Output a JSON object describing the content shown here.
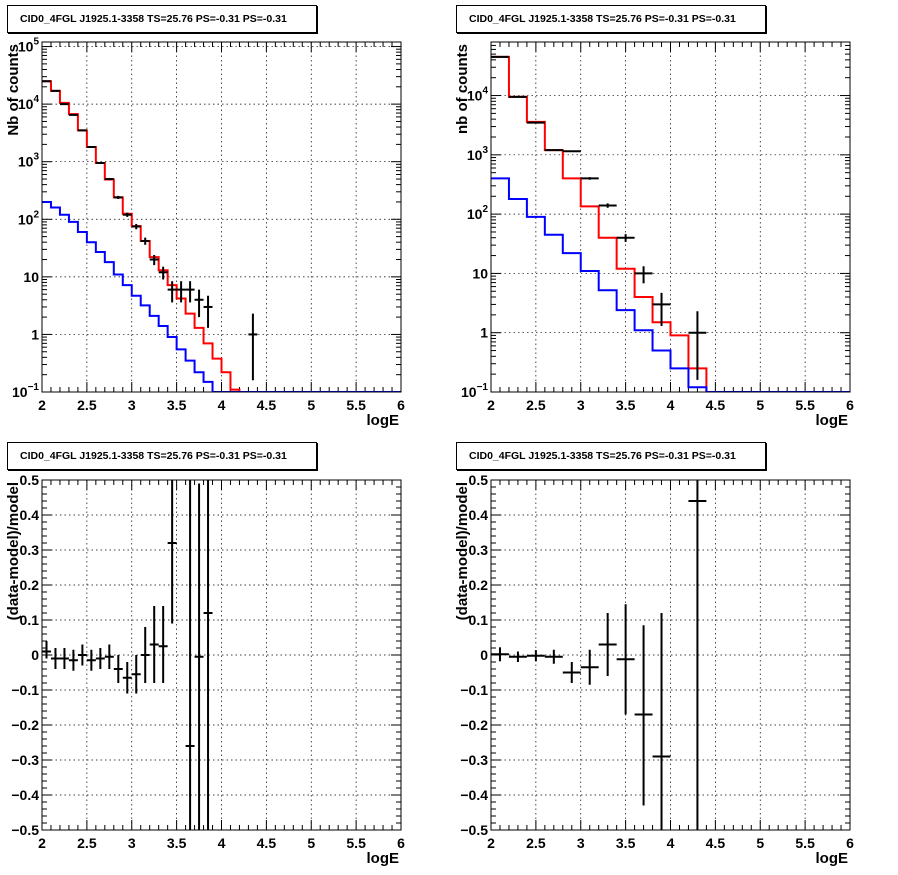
{
  "chart_data": [
    {
      "type": "line",
      "title": "CID0_4FGL J1925.1-3358 TS=25.76 PS=-0.31 PS=-0.31",
      "xlabel": "logE",
      "ylabel": "Nb of counts",
      "xlim": [
        2,
        6
      ],
      "ylim": [
        0.1,
        120000
      ],
      "yscale": "log",
      "grid": true,
      "x_ticks": [
        "2",
        "2.5",
        "3",
        "3.5",
        "4",
        "4.5",
        "5",
        "5.5",
        "6"
      ],
      "y_ticks": [
        {
          "value": 0.1,
          "base": "10",
          "exp": "−1"
        },
        {
          "value": 1,
          "label": "1"
        },
        {
          "value": 10,
          "label": "10"
        },
        {
          "value": 100,
          "base": "10",
          "exp": "2"
        },
        {
          "value": 1000,
          "base": "10",
          "exp": "3"
        },
        {
          "value": 10000,
          "base": "10",
          "exp": "4"
        },
        {
          "value": 100000,
          "base": "10",
          "exp": "5"
        }
      ],
      "bin_width": 0.1,
      "series": [
        {
          "color": "#ff0000",
          "kind": "step",
          "values": [
            25000,
            17000,
            10500,
            6700,
            3500,
            1800,
            950,
            490,
            240,
            125,
            76,
            42,
            22,
            13,
            7.2,
            4.2,
            2.3,
            1.3,
            0.7,
            0.38,
            0.22,
            0.11,
            0.1,
            0.1,
            0.1,
            0.1,
            0.1,
            0.1,
            0.1,
            0.1,
            0.1,
            0.1,
            0.1,
            0.1,
            0.1,
            0.1,
            0.1,
            0.1,
            0.1,
            0.1
          ]
        },
        {
          "color": "#0000ff",
          "kind": "step",
          "values": [
            200,
            160,
            120,
            90,
            60,
            40,
            27,
            18,
            11,
            7.2,
            4.7,
            3.2,
            2.1,
            1.4,
            0.9,
            0.55,
            0.35,
            0.22,
            0.15,
            0.1,
            0.1,
            0.1,
            0.1,
            0.1,
            0.1,
            0.1,
            0.1,
            0.1,
            0.1,
            0.1,
            0.1,
            0.1,
            0.1,
            0.1,
            0.1,
            0.1,
            0.1,
            0.1,
            0.1,
            0.1
          ]
        },
        {
          "color": "#000000",
          "kind": "points",
          "x": [
            2.05,
            2.15,
            2.25,
            2.35,
            2.45,
            2.55,
            2.65,
            2.75,
            2.85,
            2.95,
            3.05,
            3.15,
            3.25,
            3.35,
            3.45,
            3.55,
            3.65,
            3.75,
            3.85,
            4.35
          ],
          "y": [
            25000,
            17000,
            10000,
            6500,
            3500,
            1800,
            950,
            500,
            240,
            120,
            75,
            42,
            20,
            12,
            6,
            6,
            6,
            4,
            3,
            1
          ],
          "y_lo": [
            24700,
            16800,
            9800,
            6400,
            3440,
            1760,
            920,
            478,
            225,
            110,
            67,
            36,
            16,
            9,
            3.6,
            3.6,
            3.6,
            2.0,
            1.3,
            0.16
          ],
          "y_hi": [
            25300,
            17200,
            10200,
            6600,
            3560,
            1840,
            980,
            522,
            255,
            130,
            83,
            48,
            24,
            15,
            8.4,
            8.4,
            8.4,
            6,
            4.7,
            2.3
          ]
        }
      ]
    },
    {
      "type": "line",
      "title": "CID0_4FGL J1925.1-3358 TS=25.76 PS=-0.31 PS=-0.31",
      "xlabel": "logE",
      "ylabel": "nb of counts",
      "xlim": [
        2,
        6
      ],
      "ylim": [
        0.1,
        80000
      ],
      "yscale": "log",
      "grid": true,
      "x_ticks": [
        "2",
        "2.5",
        "3",
        "3.5",
        "4",
        "4.5",
        "5",
        "5.5",
        "6"
      ],
      "y_ticks": [
        {
          "value": 0.1,
          "base": "10",
          "exp": "−1"
        },
        {
          "value": 1,
          "label": "1"
        },
        {
          "value": 10,
          "label": "10"
        },
        {
          "value": 100,
          "base": "10",
          "exp": "2"
        },
        {
          "value": 1000,
          "base": "10",
          "exp": "3"
        },
        {
          "value": 10000,
          "base": "10",
          "exp": "4"
        }
      ],
      "bin_width": 0.2,
      "series": [
        {
          "color": "#ff0000",
          "kind": "step",
          "values": [
            45000,
            9500,
            3600,
            1200,
            400,
            135,
            40,
            12,
            4,
            1.5,
            0.9,
            0.25,
            0.1,
            0.1,
            0.1,
            0.1,
            0.1,
            0.1,
            0.1,
            0.1
          ]
        },
        {
          "color": "#0000ff",
          "kind": "step",
          "values": [
            400,
            180,
            90,
            45,
            22,
            11,
            5.2,
            2.4,
            1.1,
            0.5,
            0.25,
            0.12,
            0.1,
            0.1,
            0.1,
            0.1,
            0.1,
            0.1,
            0.1,
            0.1
          ]
        },
        {
          "color": "#000000",
          "kind": "points",
          "x": [
            2.1,
            2.3,
            2.5,
            2.7,
            2.9,
            3.1,
            3.3,
            3.5,
            3.7,
            3.9,
            4.3
          ],
          "y": [
            45000,
            9500,
            3500,
            1200,
            1150,
            400,
            140,
            40,
            10,
            3,
            1
          ],
          "y_lo": [
            44700,
            9400,
            3440,
            1170,
            1120,
            380,
            128,
            34,
            6.8,
            1.3,
            0.16
          ],
          "y_hi": [
            45300,
            9600,
            3560,
            1230,
            1180,
            420,
            152,
            46,
            13.2,
            4.7,
            2.3
          ]
        }
      ]
    },
    {
      "type": "scatter",
      "title": "CID0_4FGL J1925.1-3358 TS=25.76 PS=-0.31 PS=-0.31",
      "xlabel": "logE",
      "ylabel": "(data-model)/model",
      "xlim": [
        2,
        6
      ],
      "ylim": [
        -0.5,
        0.5
      ],
      "yscale": "linear",
      "grid": true,
      "x_ticks": [
        "2",
        "2.5",
        "3",
        "3.5",
        "4",
        "4.5",
        "5",
        "5.5",
        "6"
      ],
      "y_ticks": [
        {
          "value": -0.5,
          "label": "−0.5"
        },
        {
          "value": -0.4,
          "label": "−0.4"
        },
        {
          "value": -0.3,
          "label": "−0.3"
        },
        {
          "value": -0.2,
          "label": "−0.2"
        },
        {
          "value": -0.1,
          "label": "−0.1"
        },
        {
          "value": 0,
          "label": "0"
        },
        {
          "value": 0.1,
          "label": "0.1"
        },
        {
          "value": 0.2,
          "label": "0.2"
        },
        {
          "value": 0.3,
          "label": "0.3"
        },
        {
          "value": 0.4,
          "label": "0.4"
        },
        {
          "value": 0.5,
          "label": "0.5"
        }
      ],
      "series": [
        {
          "color": "#000000",
          "kind": "points",
          "xerr": 0.05,
          "x": [
            2.05,
            2.15,
            2.25,
            2.35,
            2.45,
            2.55,
            2.65,
            2.75,
            2.85,
            2.95,
            3.05,
            3.15,
            3.25,
            3.35,
            3.45,
            3.65,
            3.75,
            3.85
          ],
          "y": [
            0.01,
            -0.01,
            -0.01,
            -0.015,
            0,
            -0.015,
            -0.01,
            -0.005,
            -0.04,
            -0.065,
            -0.055,
            0,
            0.03,
            0.025,
            0.32,
            -0.26,
            -0.005,
            0.12
          ],
          "y_lo": [
            -0.01,
            -0.04,
            -0.04,
            -0.045,
            -0.03,
            -0.045,
            -0.04,
            -0.04,
            -0.08,
            -0.11,
            -0.11,
            -0.08,
            -0.08,
            -0.08,
            0.09,
            -0.6,
            -0.6,
            -0.6
          ],
          "y_hi": [
            0.04,
            0.02,
            0.02,
            0.015,
            0.03,
            0.015,
            0.02,
            0.03,
            0,
            -0.02,
            0,
            0.08,
            0.14,
            0.14,
            0.6,
            0.6,
            0.49,
            0.6
          ]
        }
      ]
    },
    {
      "type": "scatter",
      "title": "CID0_4FGL J1925.1-3358 TS=25.76 PS=-0.31 PS=-0.31",
      "xlabel": "logE",
      "ylabel": "(data-model)/model",
      "xlim": [
        2,
        6
      ],
      "ylim": [
        -0.5,
        0.5
      ],
      "yscale": "linear",
      "grid": true,
      "x_ticks": [
        "2",
        "2.5",
        "3",
        "3.5",
        "4",
        "4.5",
        "5",
        "5.5",
        "6"
      ],
      "y_ticks": [
        {
          "value": -0.5,
          "label": "−0.5"
        },
        {
          "value": -0.4,
          "label": "−0.4"
        },
        {
          "value": -0.3,
          "label": "−0.3"
        },
        {
          "value": -0.2,
          "label": "−0.2"
        },
        {
          "value": -0.1,
          "label": "−0.1"
        },
        {
          "value": 0,
          "label": "0"
        },
        {
          "value": 0.1,
          "label": "0.1"
        },
        {
          "value": 0.2,
          "label": "0.2"
        },
        {
          "value": 0.3,
          "label": "0.3"
        },
        {
          "value": 0.4,
          "label": "0.4"
        },
        {
          "value": 0.5,
          "label": "0.5"
        }
      ],
      "series": [
        {
          "color": "#000000",
          "kind": "points",
          "xerr": 0.1,
          "x": [
            2.1,
            2.3,
            2.5,
            2.7,
            2.9,
            3.1,
            3.3,
            3.5,
            3.7,
            3.9,
            4.3
          ],
          "y": [
            0.002,
            -0.005,
            -0.002,
            -0.005,
            -0.05,
            -0.035,
            0.03,
            -0.012,
            -0.17,
            -0.29,
            0.44
          ],
          "y_lo": [
            -0.018,
            -0.02,
            -0.018,
            -0.025,
            -0.08,
            -0.085,
            -0.06,
            -0.17,
            -0.43,
            -0.6,
            -0.6
          ],
          "y_hi": [
            0.022,
            0.01,
            0.014,
            0.015,
            -0.02,
            0.015,
            0.12,
            0.145,
            0.085,
            0.12,
            0.6
          ]
        }
      ]
    }
  ]
}
